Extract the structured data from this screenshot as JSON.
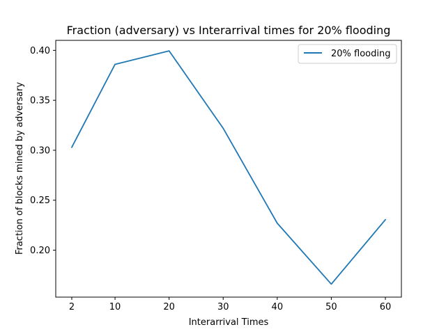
{
  "chart_data": {
    "type": "line",
    "title": "Fraction (adversary) vs Interarrival times for 20% flooding",
    "xlabel": "Interarrival Times",
    "ylabel": "Fraction of blocks mined by adversary",
    "x": [
      "2",
      "10",
      "20",
      "30",
      "40",
      "50",
      "60"
    ],
    "yticks": [
      "0.20",
      "0.25",
      "0.30",
      "0.35",
      "0.40"
    ],
    "ylim": [
      0.153,
      0.41
    ],
    "series": [
      {
        "name": "20% flooding",
        "values": [
          0.303,
          0.386,
          0.3995,
          0.322,
          0.227,
          0.166,
          0.2305
        ],
        "color": "#1f77b4"
      }
    ],
    "legend_position": "top-right",
    "grid": false
  }
}
